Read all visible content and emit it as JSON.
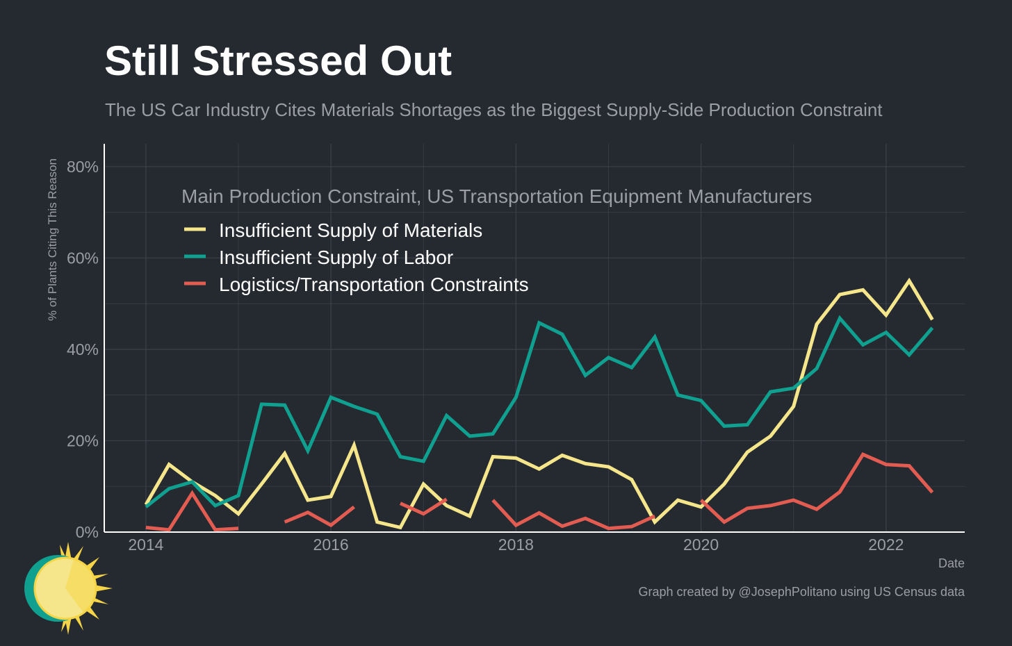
{
  "header": {
    "title": "Still Stressed Out",
    "subtitle": "The US Car Industry Cites Materials Shortages as the Biggest Supply-Side Production Constraint"
  },
  "footer": {
    "caption": "Graph created by @JosephPolitano using US Census data"
  },
  "colors": {
    "background": "#252930",
    "grid": "#3b3f47",
    "axis": "#ffffff",
    "materials": "#f5e68c",
    "labor": "#10a090",
    "logistics": "#e35c52"
  },
  "chart_data": {
    "type": "line",
    "title": "Still Stressed Out",
    "subtitle": "The US Car Industry Cites Materials Shortages as the Biggest Supply-Side Production Constraint",
    "xlabel": "Date",
    "ylabel": "% of Plants Citing This Reason",
    "ylim": [
      0,
      85
    ],
    "yticks": [
      0,
      20,
      40,
      60,
      80
    ],
    "ytick_labels": [
      "0%",
      "20%",
      "40%",
      "60%",
      "80%"
    ],
    "xticks": [
      2014,
      2016,
      2018,
      2020,
      2022
    ],
    "xtick_labels": [
      "2014",
      "2016",
      "2018",
      "2020",
      "2022"
    ],
    "grid": true,
    "legend": {
      "title": "Main Production Constraint, US Transportation Equipment Manufacturers",
      "position": "top-left"
    },
    "x": [
      2014.0,
      2014.25,
      2014.5,
      2014.75,
      2015.0,
      2015.25,
      2015.5,
      2015.75,
      2016.0,
      2016.25,
      2016.5,
      2016.75,
      2017.0,
      2017.25,
      2017.5,
      2017.75,
      2018.0,
      2018.25,
      2018.5,
      2018.75,
      2019.0,
      2019.25,
      2019.5,
      2019.75,
      2020.0,
      2020.25,
      2020.5,
      2020.75,
      2021.0,
      2021.25,
      2021.5,
      2021.75,
      2022.0,
      2022.25,
      2022.5
    ],
    "series": [
      {
        "name": "Insufficient Supply of Materials",
        "color": "#f5e68c",
        "values": [
          6,
          14.8,
          11,
          8,
          4,
          10.5,
          17.2,
          7,
          7.8,
          19,
          2.2,
          1,
          10.5,
          5.8,
          3.5,
          16.5,
          16.2,
          13.8,
          16.8,
          15,
          14.3,
          11.5,
          2.2,
          7,
          5.5,
          10.5,
          17.5,
          21,
          27.5,
          45.5,
          52,
          53,
          47.5,
          55,
          46.5
        ]
      },
      {
        "name": "Insufficient Supply of Labor",
        "color": "#10a090",
        "values": [
          5.5,
          9.5,
          11,
          5.8,
          8,
          28,
          27.8,
          17.8,
          29.5,
          27.5,
          25.8,
          16.5,
          15.5,
          25.5,
          21,
          21.5,
          29.5,
          45.8,
          43.3,
          34.3,
          38.2,
          36,
          42.7,
          30,
          28.8,
          23.2,
          23.5,
          30.7,
          31.5,
          35.8,
          46.8,
          41,
          43.7,
          38.8,
          44.7
        ]
      },
      {
        "name": "Logistics/Transportation Constraints",
        "color": "#e35c52",
        "values": [
          1,
          0.5,
          8.5,
          0.5,
          0.8,
          null,
          2.2,
          4.3,
          1.5,
          5.5,
          null,
          6.3,
          4,
          7.2,
          null,
          7,
          1.5,
          4.2,
          1.3,
          3,
          0.8,
          1.2,
          3.5,
          null,
          7,
          2.2,
          5.2,
          5.8,
          7,
          5,
          8.8,
          17,
          14.8,
          14.5,
          8.7
        ]
      }
    ]
  }
}
